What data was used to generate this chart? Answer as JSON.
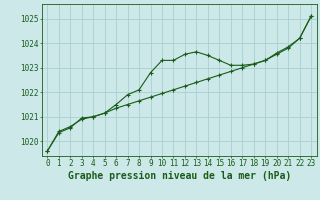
{
  "title": "Graphe pression niveau de la mer (hPa)",
  "background_color": "#cce8e8",
  "grid_color": "#aacfcf",
  "line_color": "#1a5c1a",
  "marker_color": "#1a5c1a",
  "xlim": [
    -0.5,
    23.5
  ],
  "ylim": [
    1019.4,
    1025.6
  ],
  "yticks": [
    1020,
    1021,
    1022,
    1023,
    1024,
    1025
  ],
  "xticks": [
    0,
    1,
    2,
    3,
    4,
    5,
    6,
    7,
    8,
    9,
    10,
    11,
    12,
    13,
    14,
    15,
    16,
    17,
    18,
    19,
    20,
    21,
    22,
    23
  ],
  "series1": [
    1019.6,
    1020.4,
    1020.6,
    1020.9,
    1021.0,
    1021.15,
    1021.5,
    1021.9,
    1022.1,
    1022.8,
    1023.3,
    1023.3,
    1023.55,
    1023.65,
    1023.5,
    1023.3,
    1023.1,
    1023.1,
    1023.15,
    1023.3,
    1023.55,
    1023.8,
    1024.2,
    1025.1
  ],
  "series2": [
    1019.6,
    1020.35,
    1020.55,
    1020.95,
    1021.0,
    1021.15,
    1021.35,
    1021.5,
    1021.65,
    1021.8,
    1021.95,
    1022.1,
    1022.25,
    1022.4,
    1022.55,
    1022.7,
    1022.85,
    1023.0,
    1023.15,
    1023.3,
    1023.6,
    1023.85,
    1024.2,
    1025.1
  ],
  "tick_fontsize": 5.5,
  "title_fontsize": 7.0
}
